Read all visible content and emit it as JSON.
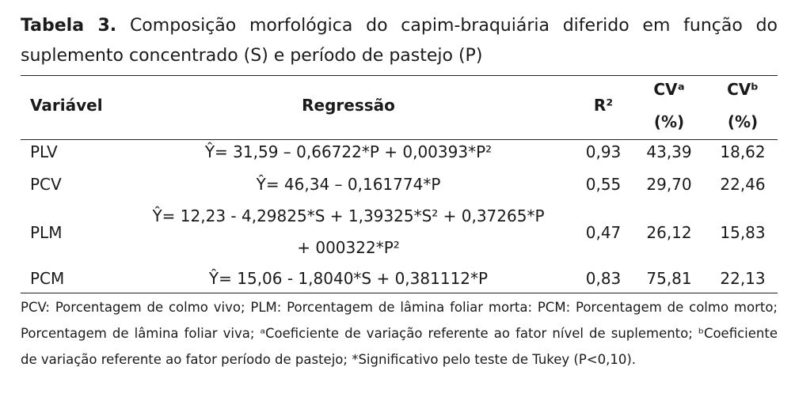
{
  "title": {
    "label": "Tabela 3.",
    "text": "Composição morfológica do capim-braquiária diferido em função do suplemento concentrado (S) e período de pastejo (P)"
  },
  "table": {
    "header": [
      "Variável",
      "Regressão",
      "R²",
      [
        "CVᵃ",
        "(%)"
      ],
      [
        "CVᵇ",
        "(%)"
      ]
    ],
    "rows": [
      [
        "PLV",
        "Ŷ= 31,59 – 0,66722*P + 0,00393*P²",
        "0,93",
        "43,39",
        "18,62"
      ],
      [
        "PCV",
        "Ŷ= 46,34 – 0,161774*P",
        "0,55",
        "29,70",
        "22,46"
      ],
      [
        "PLM",
        [
          "Ŷ= 12,23 - 4,29825*S + 1,39325*S² + 0,37265*P",
          "+ 000322*P²"
        ],
        "0,47",
        "26,12",
        "15,83"
      ],
      [
        "PCM",
        "Ŷ= 15,06 - 1,8040*S + 0,381112*P",
        "0,83",
        "75,81",
        "22,13"
      ]
    ]
  },
  "footnote": "PCV: Porcentagem de colmo vivo; PLM: Porcentagem de lâmina foliar morta: PCM: Porcentagem de colmo morto; Porcentagem de lâmina foliar viva; ᵃCoeficiente de variação referente ao fator nível de suplemento; ᵇCoeficiente de variação referente ao fator período de pastejo; *Significativo pelo teste de Tukey (P<0,10)."
}
